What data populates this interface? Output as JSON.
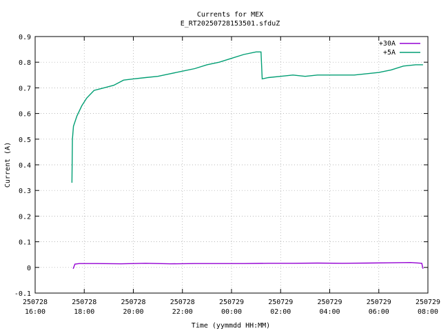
{
  "chart_data": {
    "type": "line",
    "title": "Currents for MEX",
    "subtitle": "E_RT20250728153501.sfduZ",
    "xlabel": "Time (yymmdd HH:MM)",
    "ylabel": "Current (A)",
    "xlim_hours": [
      16,
      32
    ],
    "ylim": [
      -0.1,
      0.9
    ],
    "grid": true,
    "legend_position": "top-right",
    "y_ticks": [
      "-0.1",
      "0",
      "0.1",
      "0.2",
      "0.3",
      "0.4",
      "0.5",
      "0.6",
      "0.7",
      "0.8",
      "0.9"
    ],
    "x_ticks": [
      {
        "hour": 16,
        "date": "250728",
        "time": "16:00"
      },
      {
        "hour": 18,
        "date": "250728",
        "time": "18:00"
      },
      {
        "hour": 20,
        "date": "250728",
        "time": "20:00"
      },
      {
        "hour": 22,
        "date": "250728",
        "time": "22:00"
      },
      {
        "hour": 24,
        "date": "250729",
        "time": "00:00"
      },
      {
        "hour": 26,
        "date": "250729",
        "time": "02:00"
      },
      {
        "hour": 28,
        "date": "250729",
        "time": "04:00"
      },
      {
        "hour": 30,
        "date": "250729",
        "time": "06:00"
      },
      {
        "hour": 32,
        "date": "250729",
        "time": "08:00"
      }
    ],
    "series": [
      {
        "name": "+30A",
        "color": "#9400d3",
        "points": [
          [
            17.55,
            -0.005
          ],
          [
            17.62,
            0.013
          ],
          [
            17.8,
            0.015
          ],
          [
            18.5,
            0.015
          ],
          [
            19.5,
            0.014
          ],
          [
            20.5,
            0.016
          ],
          [
            21.5,
            0.014
          ],
          [
            22.5,
            0.015
          ],
          [
            23.5,
            0.015
          ],
          [
            24.5,
            0.015
          ],
          [
            25.5,
            0.016
          ],
          [
            26.5,
            0.016
          ],
          [
            27.5,
            0.017
          ],
          [
            28.5,
            0.016
          ],
          [
            29.5,
            0.017
          ],
          [
            30.5,
            0.018
          ],
          [
            31.3,
            0.019
          ],
          [
            31.75,
            0.016
          ],
          [
            31.8,
            -0.005
          ]
        ]
      },
      {
        "name": "+5A",
        "color": "#009e73",
        "points": [
          [
            17.5,
            0.33
          ],
          [
            17.52,
            0.5
          ],
          [
            17.56,
            0.55
          ],
          [
            17.7,
            0.59
          ],
          [
            17.9,
            0.63
          ],
          [
            18.1,
            0.66
          ],
          [
            18.4,
            0.69
          ],
          [
            18.8,
            0.7
          ],
          [
            19.2,
            0.71
          ],
          [
            19.6,
            0.73
          ],
          [
            20.0,
            0.735
          ],
          [
            20.5,
            0.74
          ],
          [
            21.0,
            0.745
          ],
          [
            21.5,
            0.755
          ],
          [
            22.0,
            0.765
          ],
          [
            22.5,
            0.775
          ],
          [
            23.0,
            0.79
          ],
          [
            23.5,
            0.8
          ],
          [
            24.0,
            0.815
          ],
          [
            24.5,
            0.83
          ],
          [
            25.0,
            0.84
          ],
          [
            25.2,
            0.84
          ],
          [
            25.25,
            0.735
          ],
          [
            25.5,
            0.74
          ],
          [
            26.0,
            0.745
          ],
          [
            26.5,
            0.75
          ],
          [
            27.0,
            0.745
          ],
          [
            27.5,
            0.75
          ],
          [
            28.0,
            0.75
          ],
          [
            28.5,
            0.75
          ],
          [
            29.0,
            0.75
          ],
          [
            29.5,
            0.755
          ],
          [
            30.0,
            0.76
          ],
          [
            30.5,
            0.77
          ],
          [
            31.0,
            0.785
          ],
          [
            31.5,
            0.79
          ],
          [
            31.8,
            0.79
          ]
        ]
      }
    ]
  }
}
